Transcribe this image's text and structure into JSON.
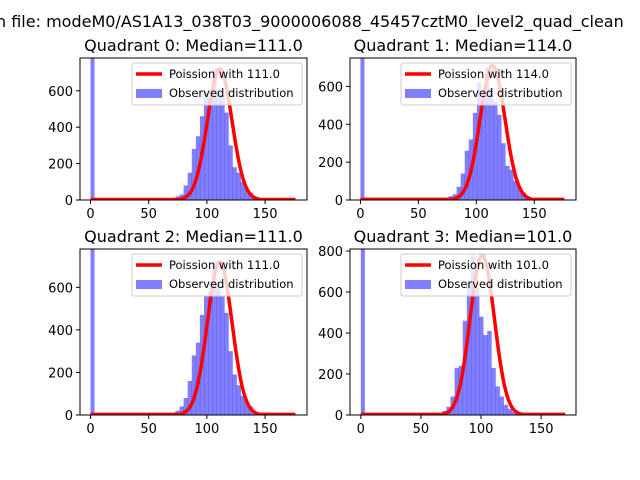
{
  "chart_data": {
    "type": "bar",
    "suptitle": "n file: modeM0/AS1A13_038T03_9000006088_45457cztM0_level2_quad_clean",
    "colors": {
      "hist": "#0000ff",
      "curve": "#ff0000"
    },
    "panels": [
      {
        "title": "Quadrant 0: Median=111.0",
        "lambda": 111.0,
        "curve_peak": 720,
        "curve_xmax": 176,
        "xlim": [
          -9,
          186
        ],
        "ylim": [
          0,
          780
        ],
        "xticks": [
          "0",
          "50",
          "100",
          "150"
        ],
        "xtick_values": [
          0,
          50,
          100,
          150
        ],
        "yticks": [
          "0",
          "200",
          "400",
          "600"
        ],
        "ytick_values": [
          0,
          200,
          400,
          600
        ],
        "legend": [
          "Poission with 111.0",
          "Observed distribution"
        ],
        "legend_loc": "upper right",
        "hist": {
          "bin_start": 0,
          "bin_width": 3.5,
          "spike_count": 1000,
          "first_bin": 66,
          "counts": [
            5,
            10,
            20,
            30,
            80,
            150,
            280,
            350,
            460,
            600,
            560,
            720,
            600,
            580,
            480,
            300,
            180,
            150,
            100,
            60,
            40,
            20,
            5
          ]
        }
      },
      {
        "title": "Quadrant 1: Median=114.0",
        "lambda": 114.0,
        "curve_peak": 710,
        "curve_xmax": 176,
        "xlim": [
          -9,
          186
        ],
        "ylim": [
          0,
          750
        ],
        "xticks": [
          "0",
          "50",
          "100",
          "150"
        ],
        "xtick_values": [
          0,
          50,
          100,
          150
        ],
        "yticks": [
          "0",
          "200",
          "400",
          "600"
        ],
        "ytick_values": [
          0,
          200,
          400,
          600
        ],
        "legend": [
          "Poission with 114.0",
          "Observed distribution"
        ],
        "legend_loc": "upper right",
        "hist": {
          "bin_start": 0,
          "bin_width": 3.5,
          "spike_count": 1000,
          "first_bin": 69,
          "counts": [
            5,
            10,
            20,
            30,
            70,
            140,
            260,
            320,
            460,
            620,
            520,
            700,
            590,
            520,
            450,
            300,
            180,
            160,
            100,
            60,
            40,
            15,
            5
          ]
        }
      },
      {
        "title": "Quadrant 2: Median=111.0",
        "lambda": 111.0,
        "curve_peak": 720,
        "curve_xmax": 176,
        "xlim": [
          -9,
          186
        ],
        "ylim": [
          0,
          780
        ],
        "xticks": [
          "0",
          "50",
          "100",
          "150"
        ],
        "xtick_values": [
          0,
          50,
          100,
          150
        ],
        "yticks": [
          "0",
          "200",
          "400",
          "600"
        ],
        "ytick_values": [
          0,
          200,
          400,
          600
        ],
        "legend": [
          "Poission with 111.0",
          "Observed distribution"
        ],
        "legend_loc": "upper right",
        "hist": {
          "bin_start": 0,
          "bin_width": 3.5,
          "spike_count": 1000,
          "first_bin": 66,
          "counts": [
            5,
            10,
            20,
            40,
            80,
            160,
            280,
            340,
            470,
            560,
            580,
            720,
            620,
            560,
            480,
            300,
            190,
            140,
            90,
            60,
            40,
            15,
            5
          ]
        }
      },
      {
        "title": "Quadrant 3: Median=101.0",
        "lambda": 101.0,
        "curve_peak": 780,
        "curve_xmax": 170,
        "xlim": [
          -9,
          179
        ],
        "ylim": [
          0,
          810
        ],
        "xticks": [
          "0",
          "50",
          "100",
          "150"
        ],
        "xtick_values": [
          0,
          50,
          100,
          150
        ],
        "yticks": [
          "0",
          "200",
          "400",
          "600",
          "800"
        ],
        "ytick_values": [
          0,
          200,
          400,
          600,
          800
        ],
        "legend": [
          "Poission with 101.0",
          "Observed distribution"
        ],
        "legend_loc": "upper right",
        "hist": {
          "bin_start": 0,
          "bin_width": 3.4,
          "spike_count": 1000,
          "first_bin": 61,
          "counts": [
            5,
            10,
            20,
            40,
            90,
            230,
            240,
            460,
            640,
            780,
            620,
            480,
            390,
            410,
            230,
            140,
            90,
            50,
            30,
            15,
            5
          ]
        }
      }
    ]
  }
}
